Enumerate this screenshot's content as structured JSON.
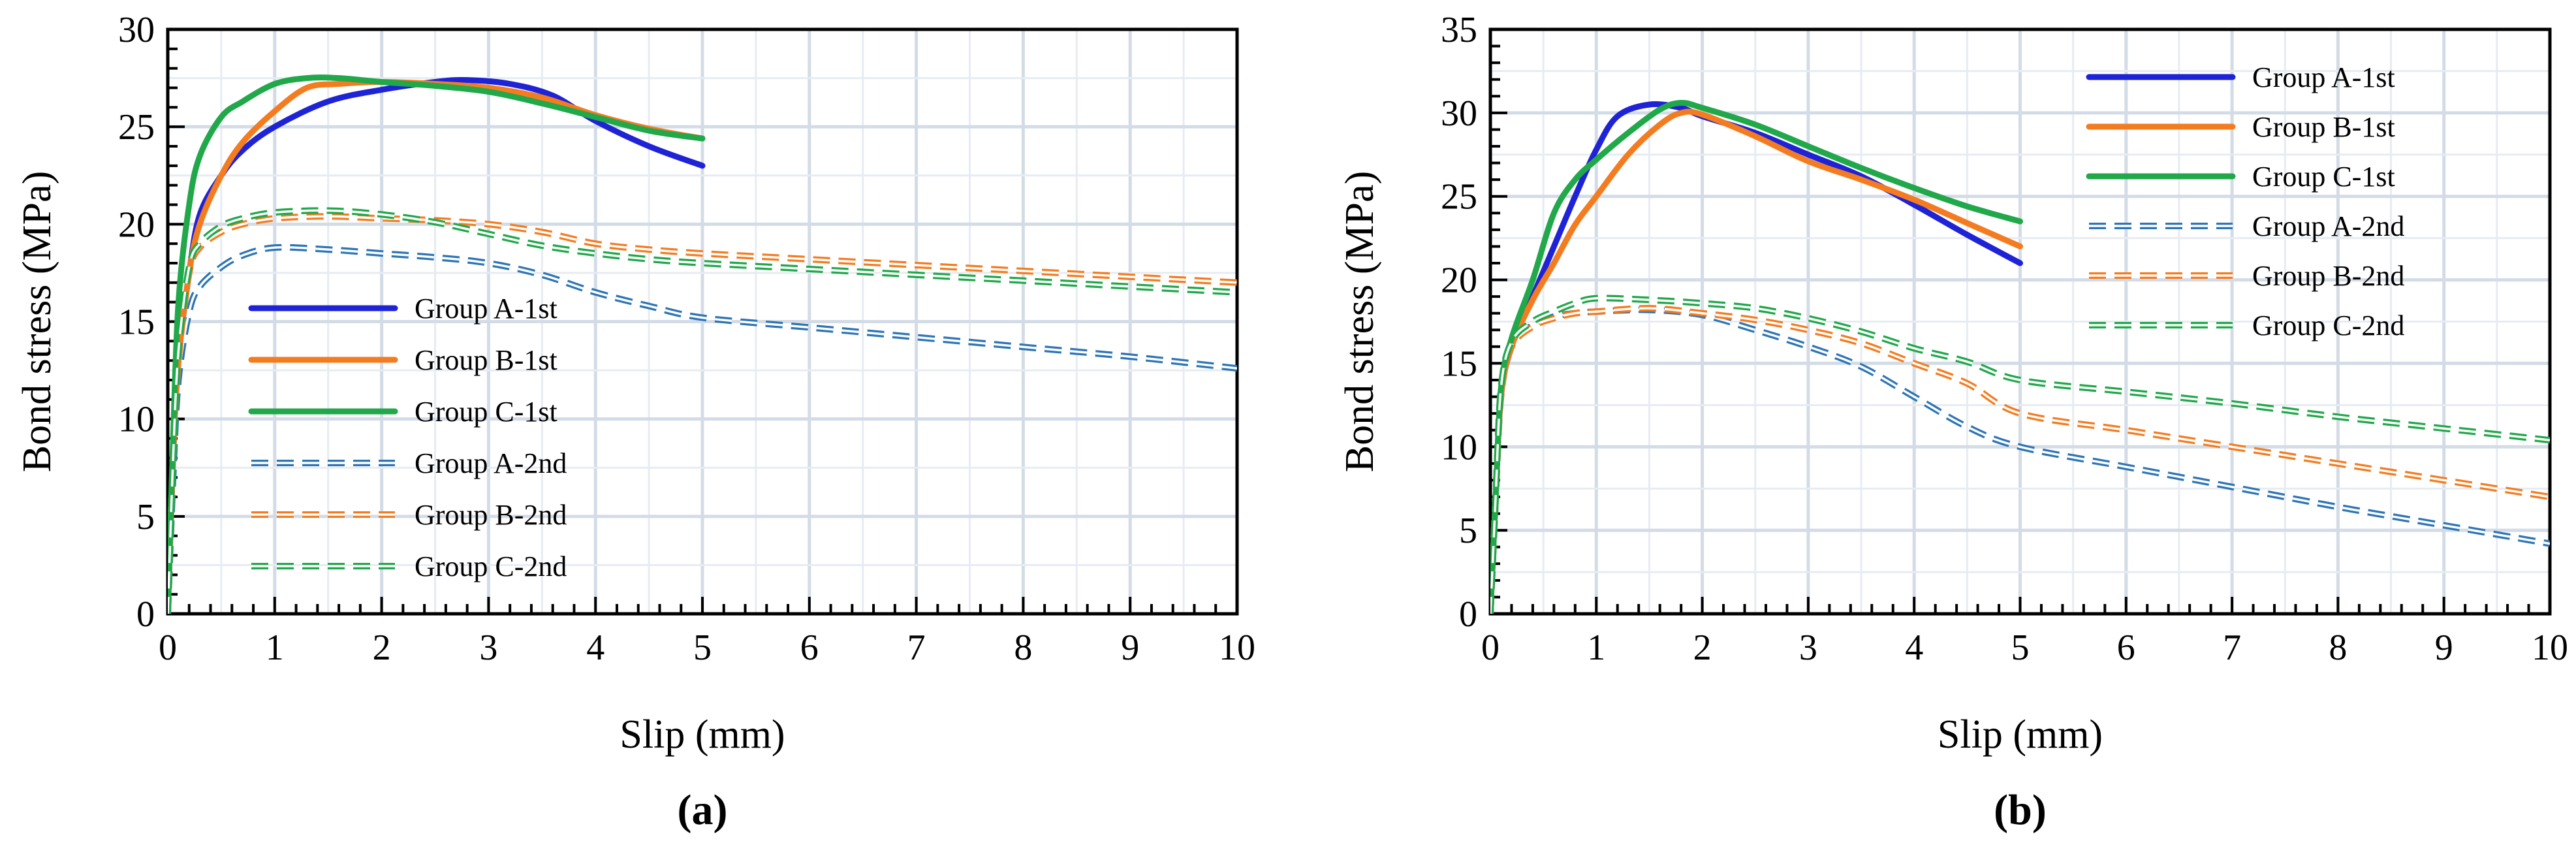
{
  "chart_data": [
    {
      "type": "line",
      "panel_label": "(a)",
      "xlabel": "Slip (mm)",
      "ylabel": "Bond stress (MPa)",
      "xlim": [
        0,
        10
      ],
      "ylim": [
        0,
        30
      ],
      "xticks": [
        "0",
        "1",
        "2",
        "3",
        "4",
        "5",
        "6",
        "7",
        "8",
        "9",
        "10"
      ],
      "yticks": [
        "0",
        "5",
        "10",
        "15",
        "20",
        "25",
        "30"
      ],
      "grid": true,
      "legend_position": "center-left",
      "series": [
        {
          "name": "Group A-1st",
          "color": "#1f23d6",
          "style": "solid",
          "x": [
            0,
            0.05,
            0.1,
            0.2,
            0.3,
            0.5,
            0.7,
            1.0,
            1.5,
            2.0,
            2.5,
            2.8,
            3.2,
            3.6,
            4.0,
            4.5,
            5.0
          ],
          "y": [
            0,
            8,
            13,
            17.5,
            20.5,
            22.5,
            23.8,
            25,
            26.3,
            26.9,
            27.3,
            27.4,
            27.2,
            26.6,
            25.3,
            24,
            23
          ]
        },
        {
          "name": "Group B-1st",
          "color": "#f47c20",
          "style": "solid",
          "x": [
            0,
            0.05,
            0.1,
            0.2,
            0.3,
            0.5,
            0.7,
            1.0,
            1.3,
            1.6,
            2.0,
            2.5,
            3.0,
            3.5,
            4.0,
            4.5,
            5.0
          ],
          "y": [
            0,
            8,
            13,
            17.5,
            20,
            22.5,
            24.2,
            25.8,
            27,
            27.2,
            27.3,
            27.2,
            27,
            26.5,
            25.6,
            24.9,
            24.4
          ]
        },
        {
          "name": "Group C-1st",
          "color": "#21a84a",
          "style": "solid",
          "x": [
            0,
            0.05,
            0.1,
            0.2,
            0.3,
            0.5,
            0.7,
            1.0,
            1.3,
            1.6,
            2.0,
            2.5,
            3.0,
            3.5,
            4.0,
            4.5,
            5.0
          ],
          "y": [
            0,
            9,
            16,
            21,
            23.5,
            25.5,
            26.3,
            27.2,
            27.5,
            27.5,
            27.3,
            27.1,
            26.8,
            26.2,
            25.5,
            24.8,
            24.4
          ]
        },
        {
          "name": "Group A-2nd",
          "color": "#2e75b6",
          "style": "dashed",
          "x": [
            0,
            0.05,
            0.1,
            0.2,
            0.3,
            0.5,
            0.7,
            1.0,
            1.5,
            2.0,
            2.5,
            3.0,
            3.5,
            4.0,
            4.5,
            5.0,
            6.0,
            7.0,
            8.0,
            9.0,
            10.0
          ],
          "y": [
            0,
            7,
            12,
            15.5,
            16.8,
            17.8,
            18.4,
            18.8,
            18.7,
            18.5,
            18.3,
            18,
            17.4,
            16.5,
            15.8,
            15.2,
            14.7,
            14.2,
            13.7,
            13.2,
            12.6
          ]
        },
        {
          "name": "Group B-2nd",
          "color": "#f47c20",
          "style": "dashed",
          "x": [
            0,
            0.05,
            0.1,
            0.2,
            0.3,
            0.5,
            0.7,
            1.0,
            1.5,
            2.0,
            2.5,
            3.0,
            3.5,
            4.0,
            4.5,
            5.0,
            6.0,
            7.0,
            8.0,
            9.0,
            10.0
          ],
          "y": [
            0,
            8,
            13,
            17.5,
            18.8,
            19.6,
            20,
            20.3,
            20.4,
            20.3,
            20.2,
            20,
            19.6,
            19,
            18.7,
            18.5,
            18.2,
            17.9,
            17.6,
            17.3,
            17
          ]
        },
        {
          "name": "Group C-2nd",
          "color": "#21a84a",
          "style": "dashed",
          "x": [
            0,
            0.05,
            0.1,
            0.2,
            0.3,
            0.5,
            0.7,
            1.0,
            1.5,
            2.0,
            2.5,
            3.0,
            3.5,
            4.0,
            4.5,
            5.0,
            6.0,
            7.0,
            8.0,
            9.0,
            10.0
          ],
          "y": [
            0,
            8,
            13.5,
            17.8,
            19,
            19.9,
            20.3,
            20.6,
            20.7,
            20.5,
            20.1,
            19.5,
            18.9,
            18.5,
            18.2,
            18,
            17.7,
            17.4,
            17.1,
            16.8,
            16.5
          ]
        }
      ]
    },
    {
      "type": "line",
      "panel_label": "(b)",
      "xlabel": "Slip (mm)",
      "ylabel": "Bond stress (MPa)",
      "xlim": [
        0,
        10
      ],
      "ylim": [
        0,
        35
      ],
      "xticks": [
        "0",
        "1",
        "2",
        "3",
        "4",
        "5",
        "6",
        "7",
        "8",
        "9",
        "10"
      ],
      "yticks": [
        "0",
        "5",
        "10",
        "15",
        "20",
        "25",
        "30",
        "35"
      ],
      "grid": true,
      "legend_position": "top-right",
      "series": [
        {
          "name": "Group A-1st",
          "color": "#1f23d6",
          "style": "solid",
          "x": [
            0,
            0.05,
            0.1,
            0.2,
            0.4,
            0.6,
            0.8,
            1.0,
            1.2,
            1.5,
            1.8,
            2.0,
            2.5,
            3.0,
            3.5,
            4.0,
            4.5,
            5.0
          ],
          "y": [
            0,
            7,
            13,
            16,
            19,
            22,
            25,
            27.8,
            29.8,
            30.5,
            30.3,
            29.8,
            28.8,
            27.5,
            26.2,
            24.5,
            22.7,
            21
          ]
        },
        {
          "name": "Group B-1st",
          "color": "#f47c20",
          "style": "solid",
          "x": [
            0,
            0.05,
            0.1,
            0.2,
            0.4,
            0.6,
            0.8,
            1.0,
            1.3,
            1.6,
            1.8,
            2.0,
            2.5,
            3.0,
            3.5,
            4.0,
            4.5,
            5.0
          ],
          "y": [
            0,
            7,
            13,
            16,
            18.8,
            21,
            23.3,
            25,
            27.5,
            29.3,
            30,
            29.9,
            28.6,
            27.1,
            26,
            24.8,
            23.4,
            22
          ]
        },
        {
          "name": "Group C-1st",
          "color": "#21a84a",
          "style": "solid",
          "x": [
            0,
            0.05,
            0.1,
            0.2,
            0.4,
            0.6,
            0.8,
            1.0,
            1.3,
            1.6,
            1.8,
            2.0,
            2.5,
            3.0,
            3.5,
            4.0,
            4.5,
            5.0
          ],
          "y": [
            0,
            7,
            13.5,
            16.5,
            20,
            24,
            26,
            27.2,
            28.8,
            30.2,
            30.6,
            30.3,
            29.3,
            28,
            26.7,
            25.5,
            24.4,
            23.5
          ]
        },
        {
          "name": "Group A-2nd",
          "color": "#2e75b6",
          "style": "dashed",
          "x": [
            0,
            0.05,
            0.1,
            0.2,
            0.4,
            0.6,
            0.8,
            1.0,
            1.5,
            2.0,
            2.5,
            3.0,
            3.5,
            4.0,
            4.5,
            5.0,
            6.0,
            7.0,
            8.0,
            9.0,
            10.0
          ],
          "y": [
            0,
            7,
            13,
            16,
            17.3,
            17.8,
            18,
            18.1,
            18.2,
            17.9,
            17,
            16,
            14.8,
            13,
            11.2,
            10,
            8.8,
            7.6,
            6.4,
            5.3,
            4.2
          ]
        },
        {
          "name": "Group B-2nd",
          "color": "#f47c20",
          "style": "dashed",
          "x": [
            0,
            0.05,
            0.1,
            0.2,
            0.4,
            0.6,
            0.8,
            1.0,
            1.5,
            2.0,
            2.5,
            3.0,
            3.5,
            4.0,
            4.5,
            5.0,
            6.0,
            7.0,
            8.0,
            9.0,
            10.0
          ],
          "y": [
            0,
            7,
            13,
            16,
            17.2,
            17.7,
            18,
            18.1,
            18.3,
            18,
            17.6,
            17,
            16.2,
            15,
            13.8,
            12,
            11,
            10,
            9,
            8,
            7
          ]
        },
        {
          "name": "Group C-2nd",
          "color": "#21a84a",
          "style": "dashed",
          "x": [
            0,
            0.05,
            0.1,
            0.2,
            0.4,
            0.6,
            0.8,
            1.0,
            1.5,
            2.0,
            2.5,
            3.0,
            3.5,
            4.0,
            4.5,
            5.0,
            6.0,
            7.0,
            8.0,
            9.0,
            10.0
          ],
          "y": [
            0,
            7,
            13.5,
            16.3,
            17.5,
            18.1,
            18.6,
            18.9,
            18.8,
            18.6,
            18.3,
            17.7,
            16.9,
            15.9,
            15.1,
            14,
            13.3,
            12.6,
            11.8,
            11.1,
            10.4
          ]
        }
      ]
    }
  ]
}
